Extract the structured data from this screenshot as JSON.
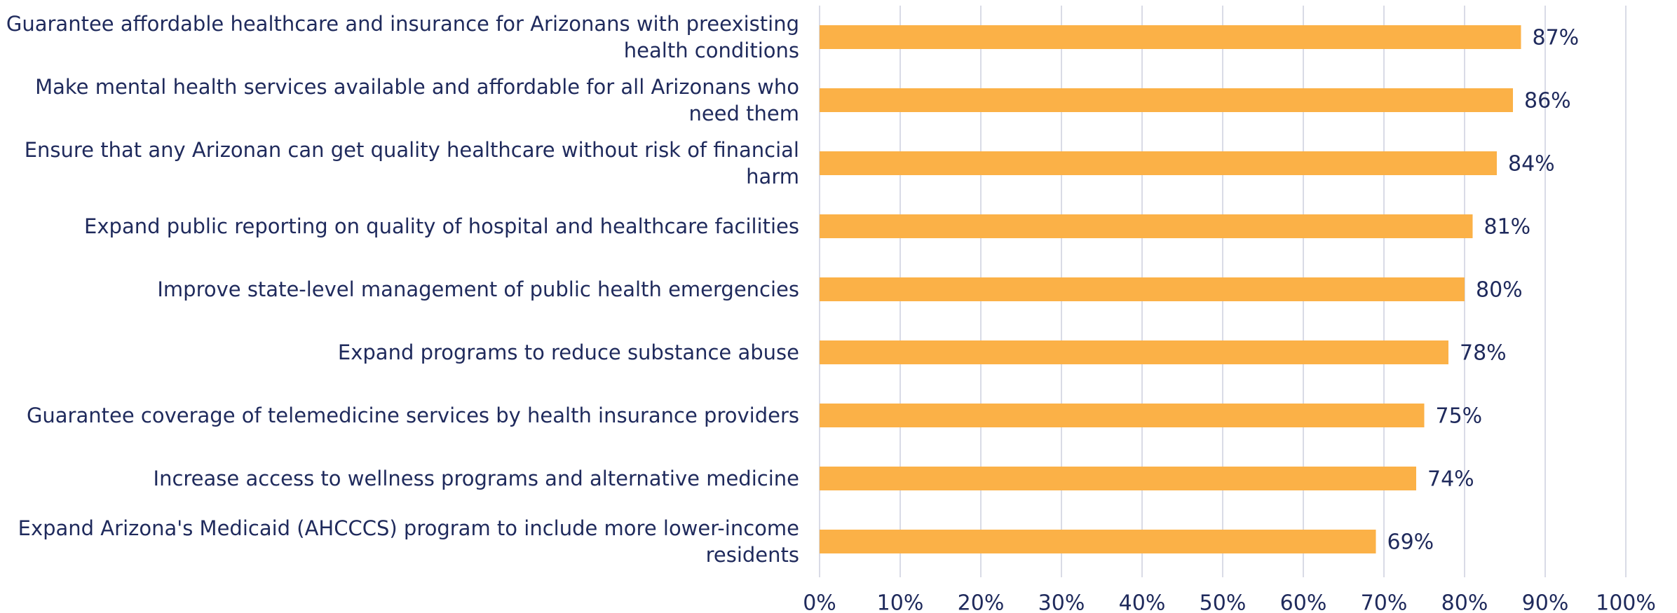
{
  "chart_data": {
    "type": "bar",
    "orientation": "horizontal",
    "categories": [
      "Guarantee affordable healthcare and insurance for Arizonans with preexisting health conditions",
      "Make mental health services available and affordable for all Arizonans who need them",
      "Ensure that any Arizonan can get quality healthcare without risk of financial harm",
      "Expand public reporting on quality of hospital and healthcare facilities",
      "Improve state-level management of public health emergencies",
      "Expand programs to reduce substance abuse",
      "Guarantee coverage of telemedicine services by health insurance providers",
      "Increase access to wellness programs and alternative medicine",
      "Expand Arizona's Medicaid (AHCCCS) program to include more lower-income residents"
    ],
    "values": [
      87,
      86,
      84,
      81,
      80,
      78,
      75,
      74,
      69
    ],
    "value_labels": [
      "87%",
      "86%",
      "84%",
      "81%",
      "80%",
      "78%",
      "75%",
      "74%",
      "69%"
    ],
    "color": "#fbb147",
    "xlim": [
      0,
      100
    ],
    "xticks": [
      {
        "value": 0,
        "label": "0%"
      },
      {
        "value": 10,
        "label": "10%"
      },
      {
        "value": 20,
        "label": "20%"
      },
      {
        "value": 30,
        "label": "30%"
      },
      {
        "value": 40,
        "label": "40%"
      },
      {
        "value": 50,
        "label": "50%"
      },
      {
        "value": 60,
        "label": "60%"
      },
      {
        "value": 70,
        "label": "70%"
      },
      {
        "value": 80,
        "label": "80%"
      },
      {
        "value": 90,
        "label": "90%"
      },
      {
        "value": 100,
        "label": "100%"
      }
    ],
    "grid": true
  }
}
